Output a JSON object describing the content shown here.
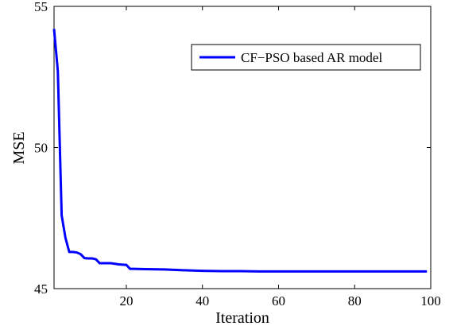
{
  "chart_data": {
    "type": "line",
    "title": "",
    "xlabel": "Iteration",
    "ylabel": "MSE",
    "xlim": [
      1,
      100
    ],
    "ylim": [
      45,
      55
    ],
    "xticks": [
      20,
      40,
      60,
      80,
      100
    ],
    "yticks": [
      45,
      50,
      55
    ],
    "grid": false,
    "legend_position": "top-right",
    "series": [
      {
        "name": "CF−PSO based AR model",
        "color": "#0000ff",
        "x": [
          1,
          2,
          3,
          4,
          5,
          6,
          7,
          8,
          9,
          10,
          11,
          12,
          13,
          14,
          15,
          16,
          17,
          18,
          19,
          20,
          21,
          22,
          25,
          30,
          35,
          40,
          45,
          50,
          55,
          60,
          65,
          70,
          75,
          80,
          85,
          90,
          95,
          99
        ],
        "y": [
          54.2,
          52.7,
          47.6,
          46.8,
          46.3,
          46.3,
          46.28,
          46.22,
          46.08,
          46.07,
          46.07,
          46.04,
          45.9,
          45.9,
          45.9,
          45.9,
          45.88,
          45.86,
          45.85,
          45.84,
          45.7,
          45.7,
          45.69,
          45.68,
          45.65,
          45.63,
          45.62,
          45.62,
          45.61,
          45.61,
          45.61,
          45.61,
          45.61,
          45.61,
          45.61,
          45.61,
          45.61,
          45.61
        ]
      }
    ]
  }
}
